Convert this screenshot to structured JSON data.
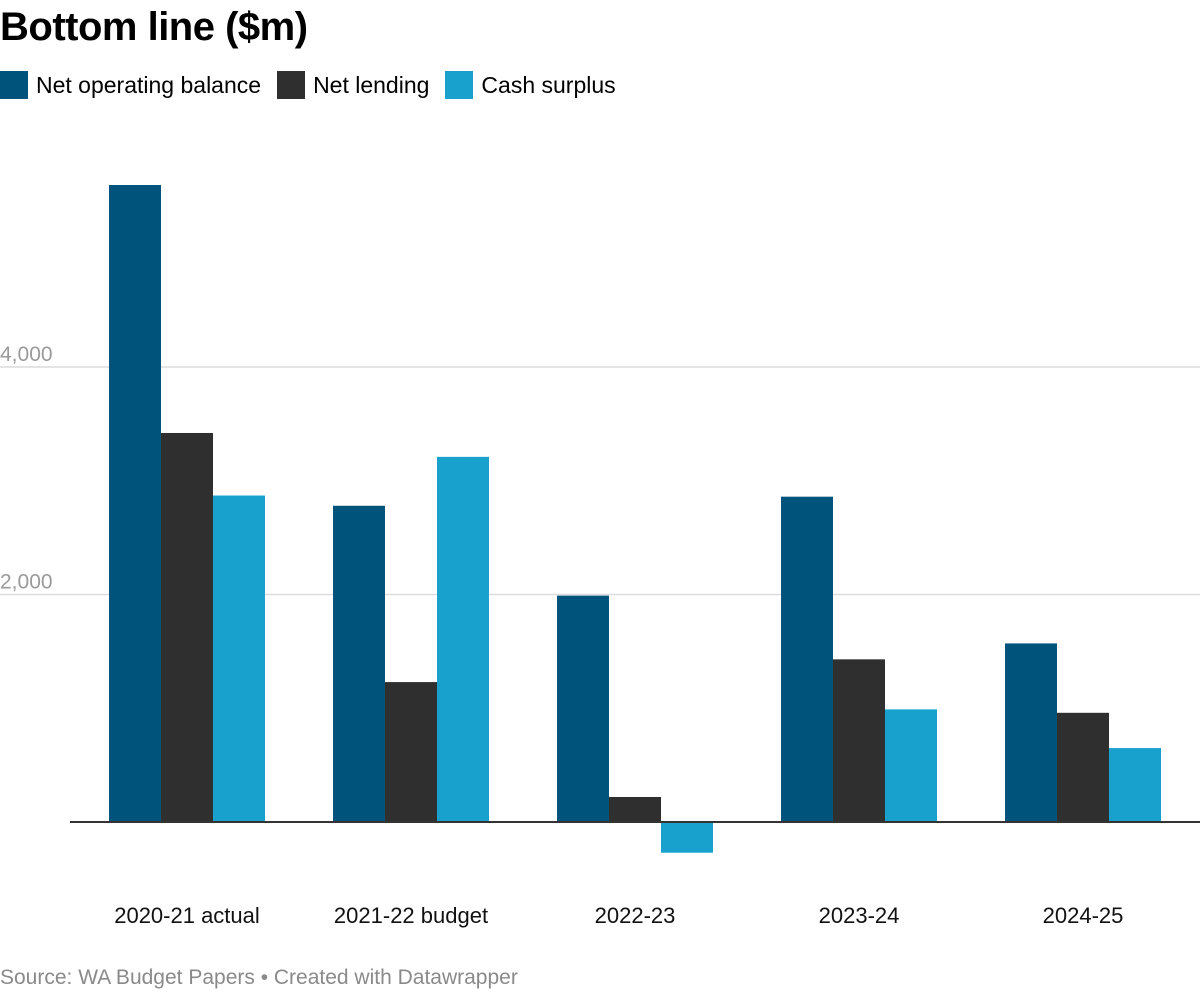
{
  "chart_data": {
    "type": "bar",
    "title": "Bottom line ($m)",
    "categories": [
      "2020-21 actual",
      "2021-22 budget",
      "2022-23",
      "2023-24",
      "2024-25"
    ],
    "series": [
      {
        "name": "Net operating balance",
        "color": "#00537a",
        "values": [
          5600,
          2780,
          1990,
          2860,
          1570
        ]
      },
      {
        "name": "Net lending",
        "color": "#2f2f2f",
        "values": [
          3420,
          1230,
          220,
          1430,
          960
        ]
      },
      {
        "name": "Cash surplus",
        "color": "#18a1cd",
        "values": [
          2870,
          3210,
          -270,
          990,
          650
        ]
      }
    ],
    "yticks": [
      {
        "value": 2000,
        "label": "2,000"
      },
      {
        "value": 4000,
        "label": "4,000"
      }
    ],
    "ylim": [
      -500,
      5800
    ],
    "grid": true,
    "legend_position": "top-left",
    "xlabel": "",
    "ylabel": "",
    "source": "Source: WA Budget Papers • Created with Datawrapper"
  }
}
